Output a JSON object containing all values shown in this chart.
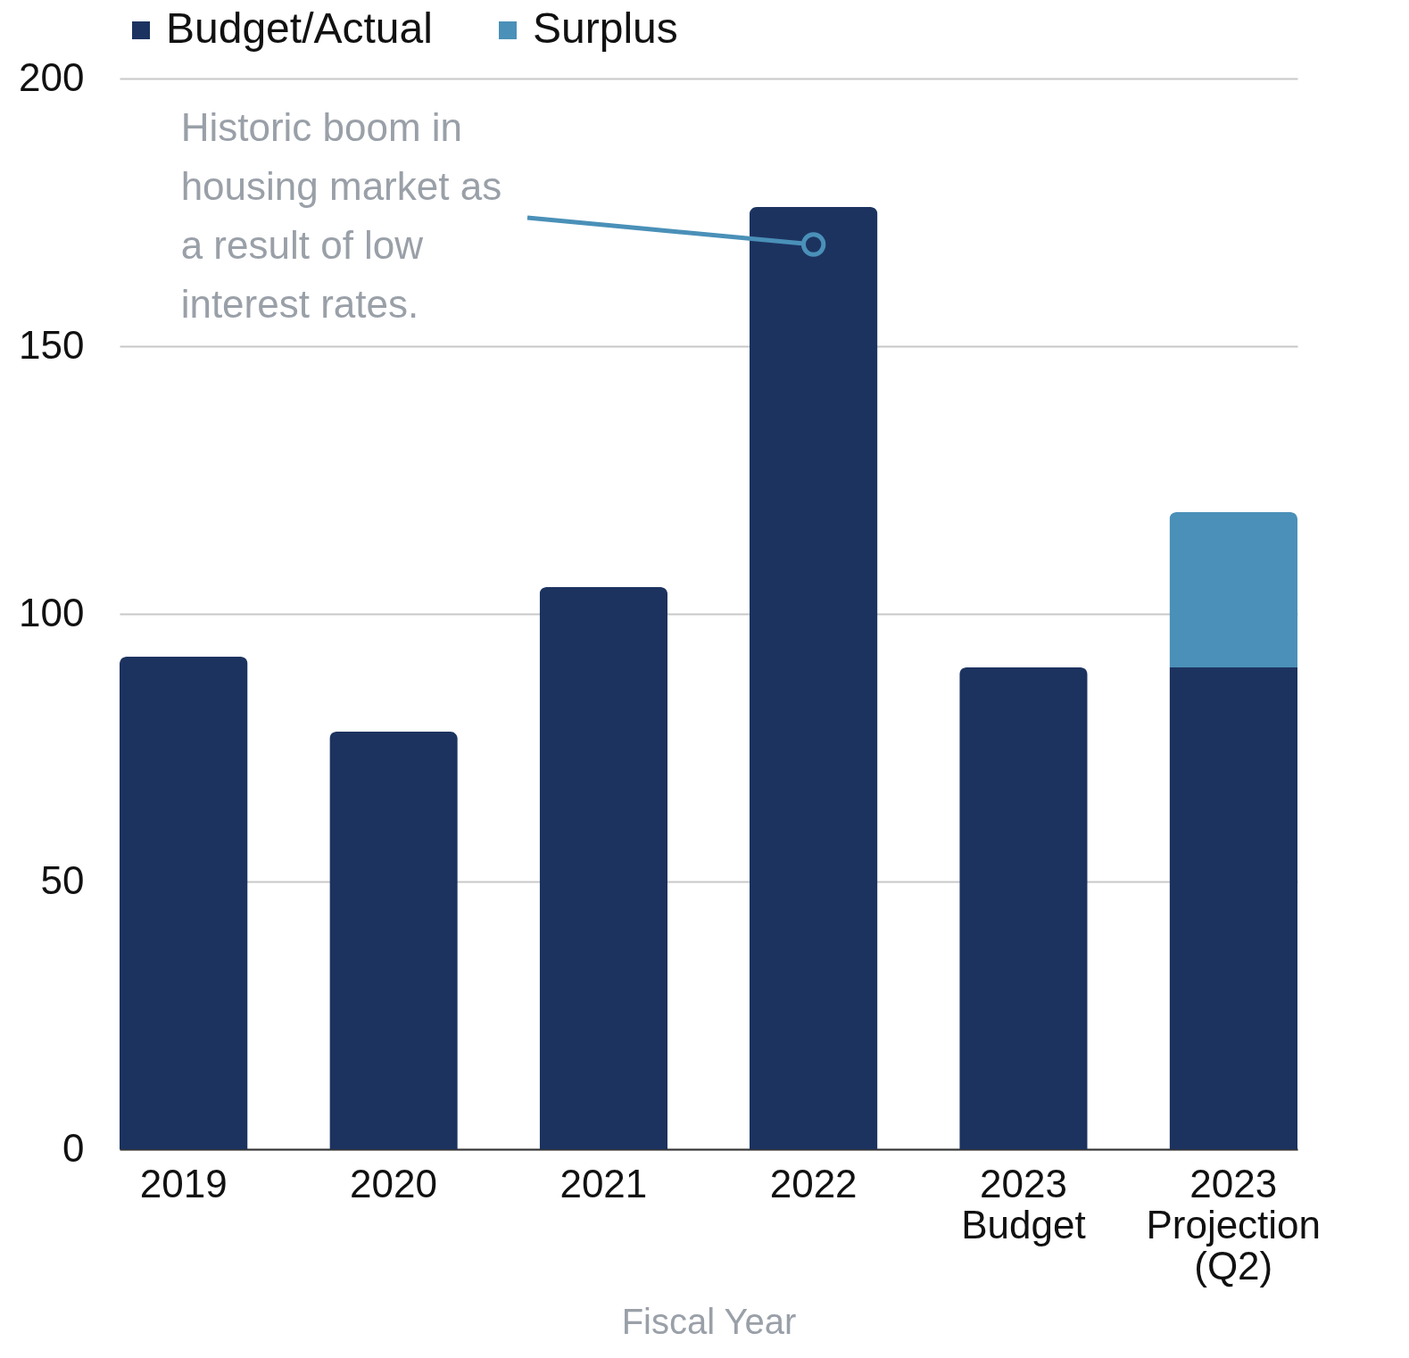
{
  "chart_data": {
    "type": "bar",
    "stacked": true,
    "xlabel": "Fiscal Year",
    "categories": [
      "2019",
      "2020",
      "2021",
      "2022",
      "2023\nBudget",
      "2023\nProjection\n(Q2)"
    ],
    "series": [
      {
        "name": "Budget/Actual",
        "color": "#1c3360",
        "values": [
          92,
          78,
          105,
          176,
          90,
          90
        ]
      },
      {
        "name": "Surplus",
        "color": "#4a90b8",
        "values": [
          null,
          null,
          null,
          null,
          null,
          29
        ]
      }
    ],
    "ylim": [
      0,
      200
    ],
    "yticks": [
      0,
      50,
      100,
      150,
      200
    ],
    "grid": "y",
    "legend": "top",
    "annotations": [
      {
        "text": "Historic boom in\nhousing market as\na result of low\ninterest rates.",
        "x": "2022",
        "y": 169
      }
    ]
  }
}
